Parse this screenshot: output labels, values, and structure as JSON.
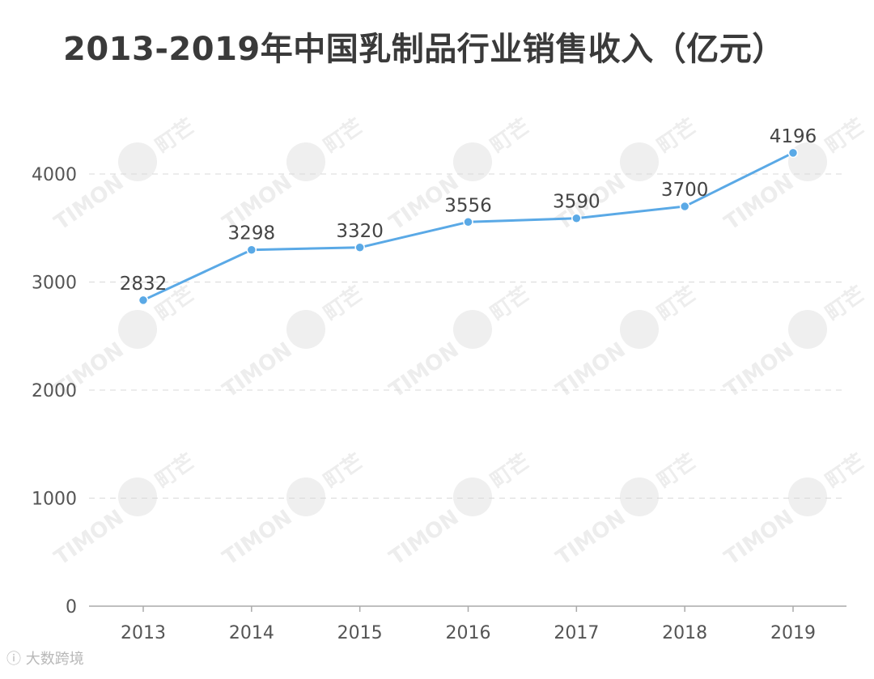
{
  "chart_data": {
    "type": "line",
    "title": "2013-2019年中国乳制品行业销售收入（亿元）",
    "categories": [
      "2013",
      "2014",
      "2015",
      "2016",
      "2017",
      "2018",
      "2019"
    ],
    "series": [
      {
        "values": [
          2832,
          3298,
          3320,
          3556,
          3590,
          3700,
          4196
        ]
      }
    ],
    "ylim": [
      0,
      4000
    ],
    "yticks": [
      "0",
      "1000",
      "2000",
      "3000",
      "4000"
    ],
    "xlabel": "",
    "ylabel": "",
    "grid": true,
    "line_color": "#5aa9e6",
    "data_labels": true
  },
  "watermark": {
    "text": "TIMON",
    "brand": "町芒"
  },
  "footer": {
    "logo_text": "大数跨境"
  }
}
